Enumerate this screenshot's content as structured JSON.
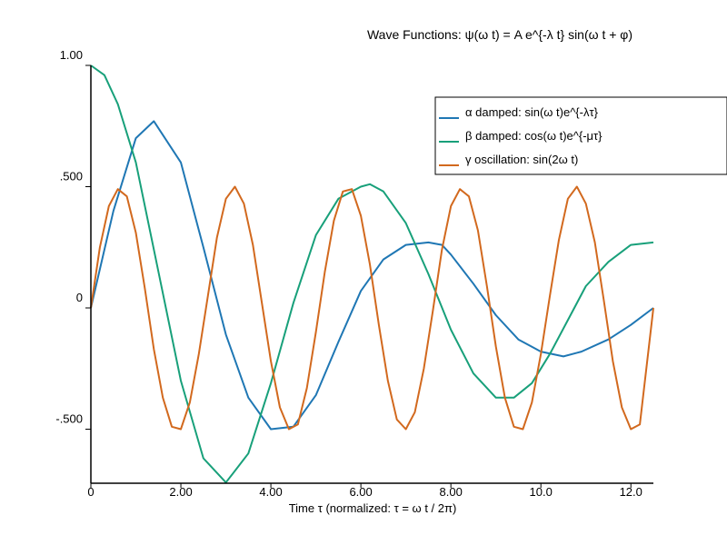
{
  "chart_data": {
    "type": "line",
    "title": "Wave Functions: ψ(ω t) = A e^{-λ t} sin(ω t + φ)",
    "xlabel": "Time τ (normalized: τ = ω t / 2π)",
    "ylabel": "",
    "xlim": [
      0,
      12.5
    ],
    "ylim": [
      -0.72,
      1.0
    ],
    "xticks": [
      {
        "value": 0,
        "label": "0"
      },
      {
        "value": 2,
        "label": "2.00"
      },
      {
        "value": 4,
        "label": "4.00"
      },
      {
        "value": 6,
        "label": "6.00"
      },
      {
        "value": 8,
        "label": "8.00"
      },
      {
        "value": 10,
        "label": "10.0"
      },
      {
        "value": 12,
        "label": "12.0"
      }
    ],
    "yticks": [
      {
        "value": -0.5,
        "label": "-.500"
      },
      {
        "value": 0,
        "label": "0"
      },
      {
        "value": 0.5,
        "label": ".500"
      },
      {
        "value": 1.0,
        "label": "1.00"
      }
    ],
    "grid": false,
    "legend_position": "top-right",
    "series": [
      {
        "name": "α damped: sin(ω t)e^{-λτ}",
        "color": "#1f77b4",
        "x": [
          0,
          0.5,
          1.0,
          1.4,
          2.0,
          2.5,
          3.0,
          3.5,
          4.0,
          4.5,
          5.0,
          5.5,
          6.0,
          6.5,
          7.0,
          7.5,
          7.8,
          8.0,
          8.5,
          9.0,
          9.5,
          10.0,
          10.5,
          10.9,
          11.5,
          12.0,
          12.5
        ],
        "y": [
          0,
          0.4,
          0.7,
          0.77,
          0.6,
          0.25,
          -0.11,
          -0.37,
          -0.5,
          -0.49,
          -0.36,
          -0.14,
          0.07,
          0.2,
          0.26,
          0.27,
          0.26,
          0.22,
          0.1,
          -0.03,
          -0.13,
          -0.18,
          -0.2,
          -0.18,
          -0.13,
          -0.07,
          0.0
        ]
      },
      {
        "name": "β damped: cos(ω t)e^{-μτ}",
        "color": "#18a07a",
        "x": [
          0,
          0.3,
          0.6,
          1.0,
          1.5,
          2.0,
          2.5,
          3.0,
          3.5,
          4.0,
          4.5,
          5.0,
          5.5,
          6.0,
          6.2,
          6.5,
          7.0,
          7.5,
          8.0,
          8.5,
          9.0,
          9.4,
          9.8,
          10.2,
          10.6,
          11.0,
          11.5,
          12.0,
          12.5
        ],
        "y": [
          1.0,
          0.96,
          0.84,
          0.6,
          0.15,
          -0.3,
          -0.62,
          -0.72,
          -0.6,
          -0.31,
          0.02,
          0.3,
          0.45,
          0.5,
          0.51,
          0.48,
          0.35,
          0.14,
          -0.09,
          -0.27,
          -0.37,
          -0.37,
          -0.31,
          -0.19,
          -0.05,
          0.09,
          0.19,
          0.26,
          0.27
        ]
      },
      {
        "name": "γ oscillation: sin(2ω t)",
        "color": "#d2691e",
        "x": [
          0,
          0.2,
          0.4,
          0.6,
          0.8,
          1.0,
          1.2,
          1.4,
          1.6,
          1.8,
          2.0,
          2.2,
          2.4,
          2.6,
          2.8,
          3.0,
          3.2,
          3.4,
          3.6,
          3.8,
          4.0,
          4.2,
          4.4,
          4.6,
          4.8,
          5.0,
          5.2,
          5.4,
          5.6,
          5.8,
          6.0,
          6.2,
          6.4,
          6.6,
          6.8,
          7.0,
          7.2,
          7.4,
          7.6,
          7.8,
          8.0,
          8.2,
          8.4,
          8.6,
          8.8,
          9.0,
          9.2,
          9.4,
          9.6,
          9.8,
          10.0,
          10.2,
          10.4,
          10.6,
          10.8,
          11.0,
          11.2,
          11.4,
          11.6,
          11.8,
          12.0,
          12.2,
          12.5
        ],
        "y": [
          0,
          0.25,
          0.42,
          0.49,
          0.46,
          0.31,
          0.08,
          -0.17,
          -0.37,
          -0.49,
          -0.5,
          -0.39,
          -0.19,
          0.05,
          0.29,
          0.45,
          0.5,
          0.43,
          0.26,
          0.02,
          -0.22,
          -0.41,
          -0.5,
          -0.48,
          -0.33,
          -0.1,
          0.15,
          0.36,
          0.48,
          0.49,
          0.38,
          0.18,
          -0.07,
          -0.3,
          -0.46,
          -0.5,
          -0.43,
          -0.25,
          -0.01,
          0.24,
          0.42,
          0.49,
          0.46,
          0.32,
          0.09,
          -0.16,
          -0.37,
          -0.49,
          -0.5,
          -0.39,
          -0.19,
          0.05,
          0.28,
          0.45,
          0.5,
          0.43,
          0.27,
          0.03,
          -0.22,
          -0.41,
          -0.5,
          -0.48,
          0.0
        ]
      }
    ]
  }
}
